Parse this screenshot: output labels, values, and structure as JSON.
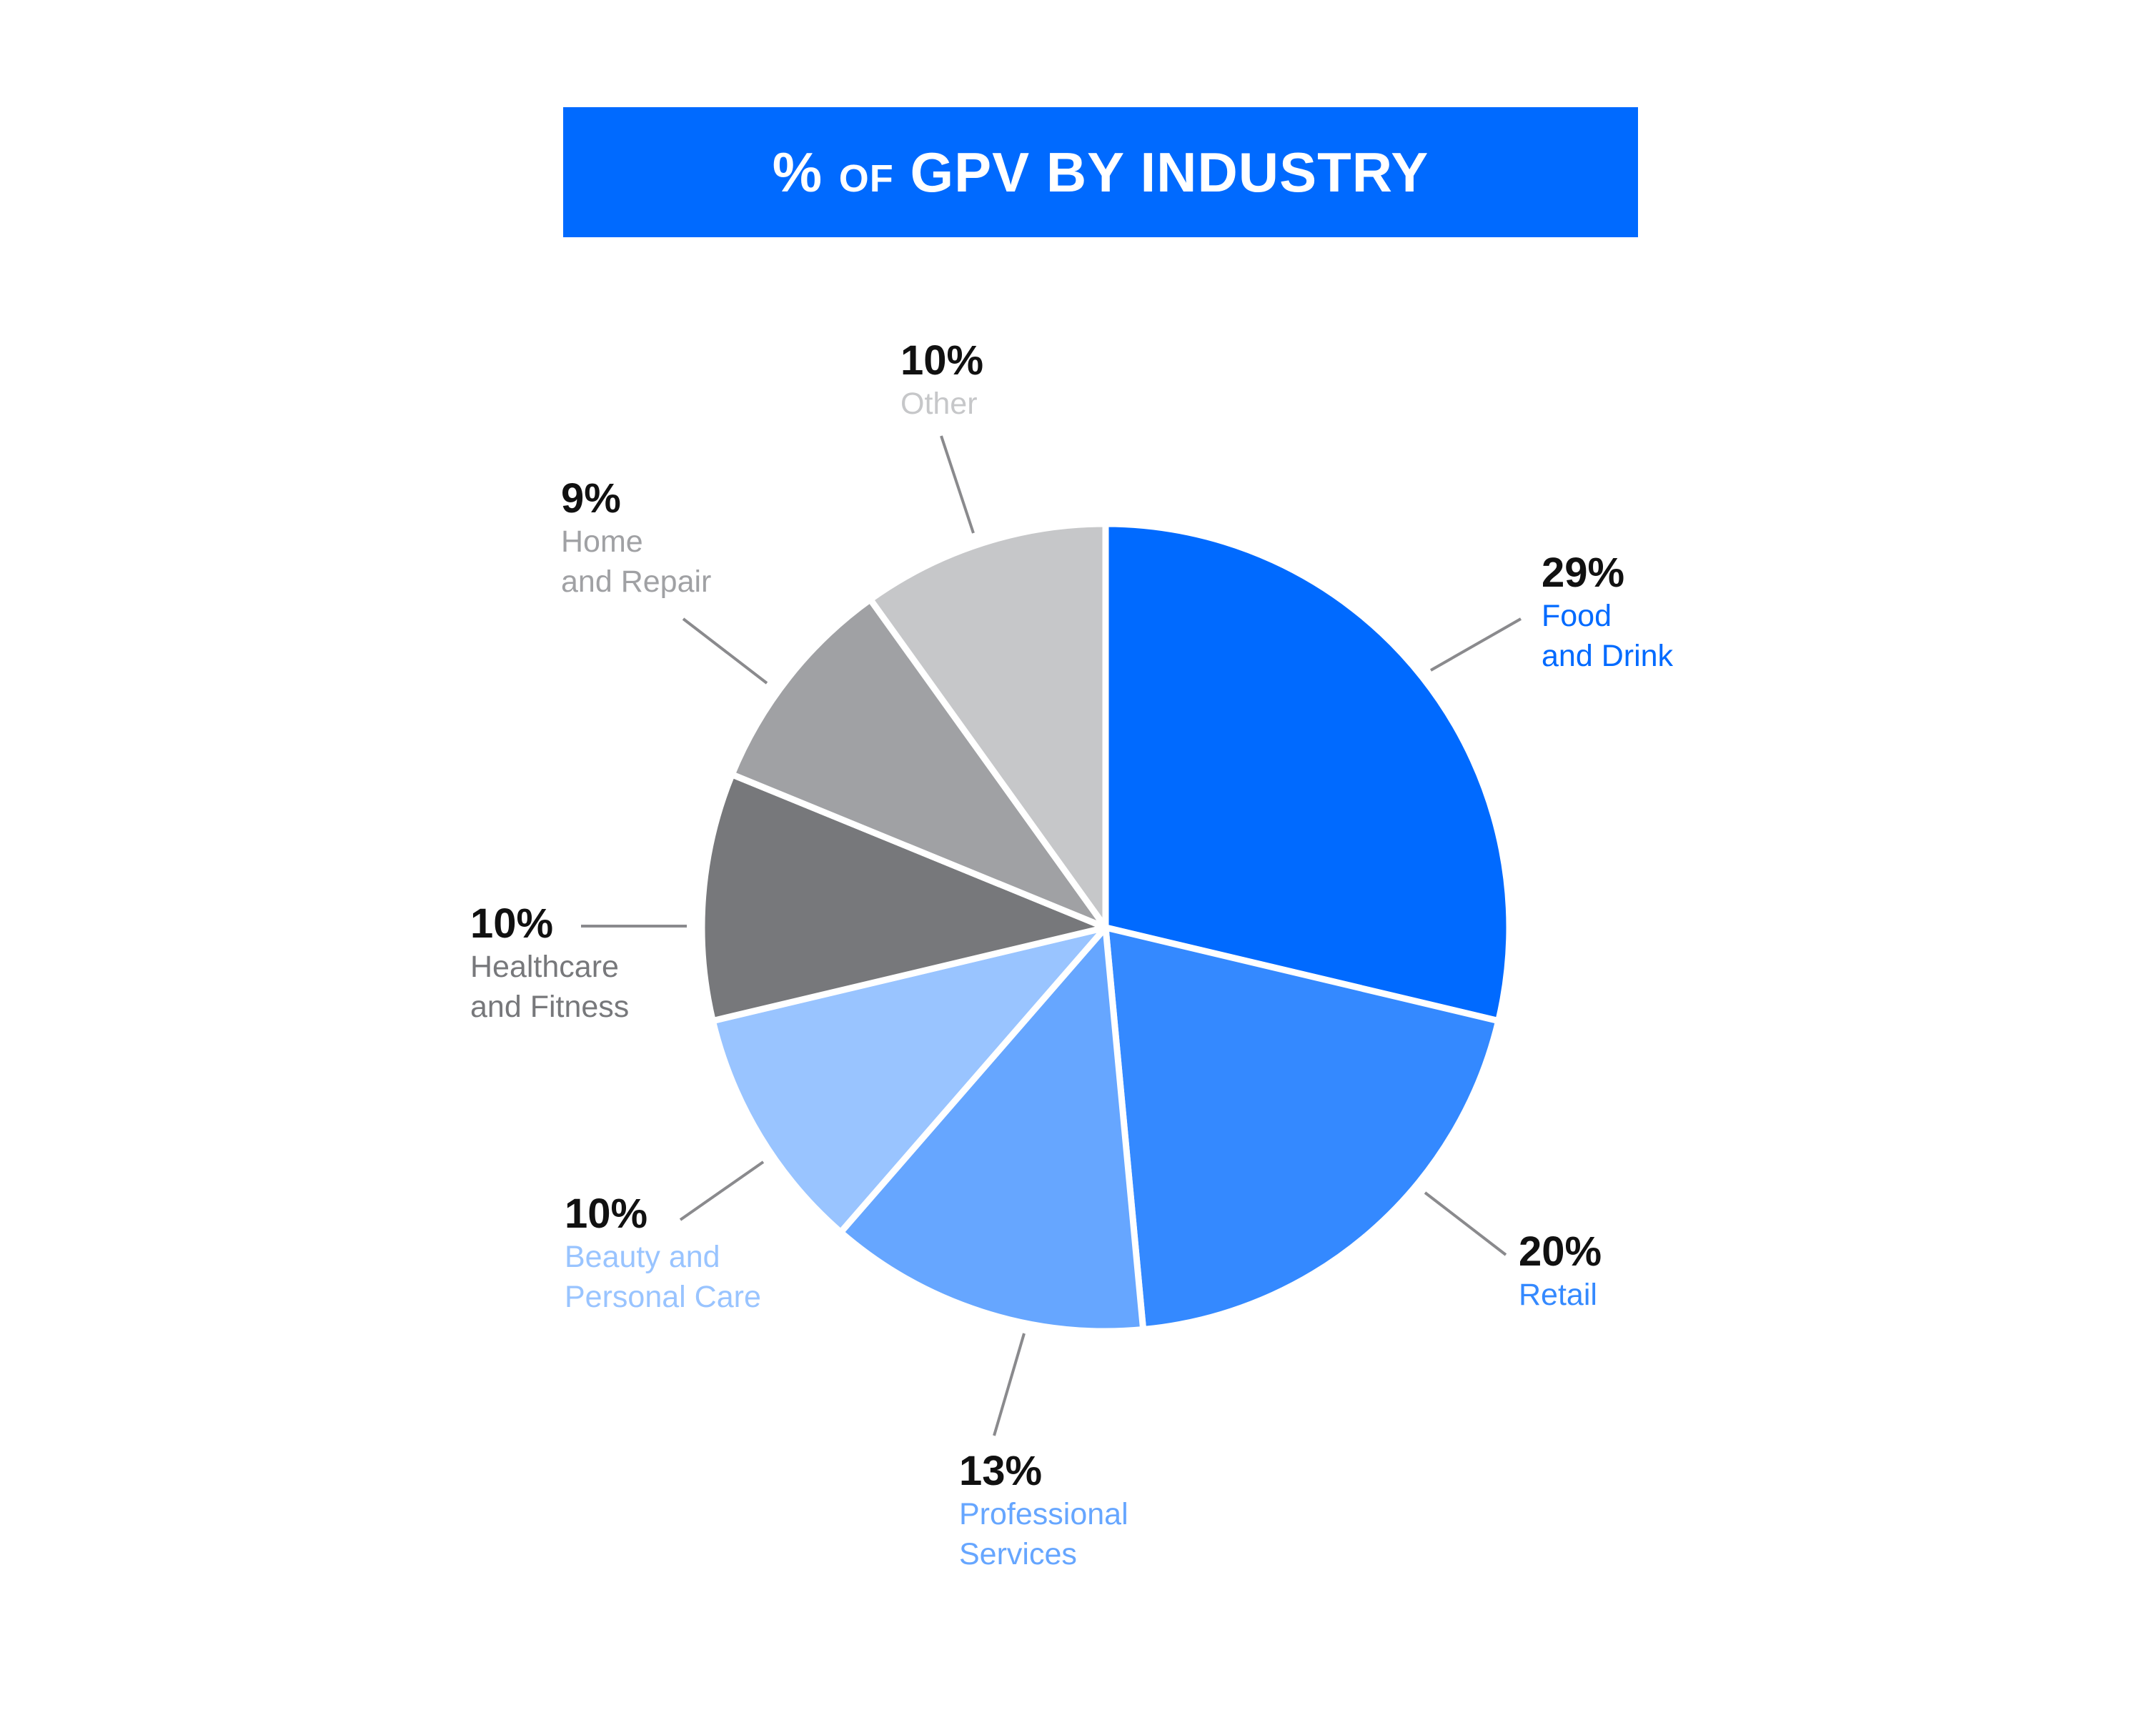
{
  "header": {
    "title_prefix": "%",
    "title_of": "OF",
    "title_main": "GPV BY INDUSTRY"
  },
  "colors": {
    "banner": "#006aff",
    "title_text": "#ffffff",
    "slice_separator": "#ffffff",
    "leader_line": "#8a8a8d"
  },
  "chart_data": {
    "type": "pie",
    "title": "% OF GPV BY INDUSTRY",
    "start": "12 o'clock, clockwise",
    "legend": "none (direct callout labels)",
    "slices": [
      {
        "label": "Food and Drink",
        "label_lines": [
          "Food",
          "and Drink"
        ],
        "pct_text": "29%",
        "value": 29,
        "color": "#006aff"
      },
      {
        "label": "Retail",
        "label_lines": [
          "Retail"
        ],
        "pct_text": "20%",
        "value": 20,
        "color": "#3489ff"
      },
      {
        "label": "Professional Services",
        "label_lines": [
          "Professional",
          "Services"
        ],
        "pct_text": "13%",
        "value": 13,
        "color": "#66a6ff"
      },
      {
        "label": "Beauty and Personal Care",
        "label_lines": [
          "Beauty and",
          "Personal Care"
        ],
        "pct_text": "10%",
        "value": 10,
        "color": "#99c4ff"
      },
      {
        "label": "Healthcare and Fitness",
        "label_lines": [
          "Healthcare",
          "and Fitness"
        ],
        "pct_text": "10%",
        "value": 10,
        "color": "#77787b"
      },
      {
        "label": "Home and Repair",
        "label_lines": [
          "Home",
          "and Repair"
        ],
        "pct_text": "9%",
        "value": 9,
        "color": "#a0a1a4"
      },
      {
        "label": "Other",
        "label_lines": [
          "Other"
        ],
        "pct_text": "10%",
        "value": 10,
        "color": "#c6c7c9"
      }
    ]
  }
}
